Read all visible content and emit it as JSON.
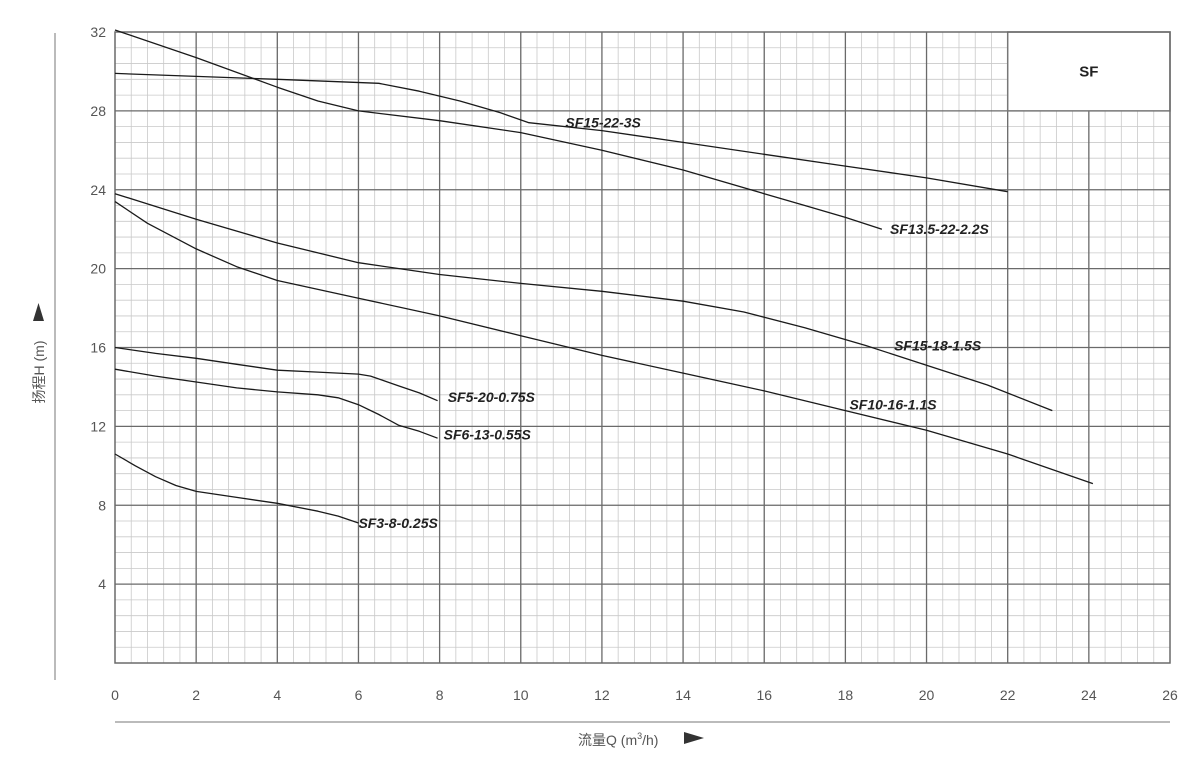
{
  "chart_data": {
    "type": "line",
    "box_label": "SF",
    "xlabel_prefix": "流量Q (m",
    "xlabel_sup": "3",
    "xlabel_suffix": "/h)",
    "ylabel": "扬程H (m)",
    "xlim": [
      0,
      26
    ],
    "ylim": [
      0,
      32
    ],
    "x_ticks": [
      0,
      2,
      4,
      6,
      8,
      10,
      12,
      14,
      16,
      18,
      20,
      22,
      24,
      26
    ],
    "y_ticks": [
      4,
      8,
      12,
      16,
      20,
      24,
      28,
      32
    ],
    "grid": true,
    "series": [
      {
        "name": "SF15-22-3S",
        "points": [
          [
            0,
            29.9
          ],
          [
            2,
            29.75
          ],
          [
            4,
            29.6
          ],
          [
            6.5,
            29.4
          ],
          [
            7.5,
            29.0
          ],
          [
            8.5,
            28.5
          ],
          [
            9.5,
            27.9
          ],
          [
            10.2,
            27.4
          ],
          [
            12,
            27.0
          ],
          [
            14,
            26.4
          ],
          [
            16,
            25.8
          ],
          [
            18,
            25.2
          ],
          [
            20,
            24.6
          ],
          [
            22,
            23.9
          ]
        ],
        "label_at": [
          11.1,
          27.4
        ]
      },
      {
        "name": "SF13.5-22-2.2S",
        "points": [
          [
            0,
            32.1
          ],
          [
            2,
            30.7
          ],
          [
            4,
            29.2
          ],
          [
            5,
            28.5
          ],
          [
            6,
            28.0
          ],
          [
            8,
            27.5
          ],
          [
            10,
            26.9
          ],
          [
            12,
            26.0
          ],
          [
            14,
            25.0
          ],
          [
            16,
            23.8
          ],
          [
            17,
            23.2
          ],
          [
            18,
            22.6
          ],
          [
            18.9,
            22.0
          ]
        ],
        "label_at": [
          19.1,
          22.0
        ]
      },
      {
        "name": "SF15-18-1.5S",
        "points": [
          [
            0,
            23.8
          ],
          [
            2,
            22.5
          ],
          [
            4,
            21.3
          ],
          [
            6,
            20.3
          ],
          [
            8,
            19.7
          ],
          [
            10,
            19.25
          ],
          [
            12,
            18.85
          ],
          [
            14,
            18.35
          ],
          [
            15.5,
            17.8
          ],
          [
            17,
            17.0
          ],
          [
            18.5,
            16.1
          ],
          [
            20,
            15.1
          ],
          [
            21.5,
            14.1
          ],
          [
            23.1,
            12.8
          ]
        ],
        "label_at": [
          19.2,
          16.1
        ]
      },
      {
        "name": "SF10-16-1.1S",
        "points": [
          [
            0,
            23.4
          ],
          [
            0.8,
            22.3
          ],
          [
            2,
            21.0
          ],
          [
            3,
            20.1
          ],
          [
            4,
            19.4
          ],
          [
            6,
            18.5
          ],
          [
            8,
            17.6
          ],
          [
            10,
            16.6
          ],
          [
            12,
            15.6
          ],
          [
            14,
            14.7
          ],
          [
            16,
            13.8
          ],
          [
            18,
            12.8
          ],
          [
            20,
            11.8
          ],
          [
            22,
            10.6
          ],
          [
            24.1,
            9.1
          ]
        ],
        "label_at": [
          18.1,
          13.1
        ]
      },
      {
        "name": "SF5-20-0.75S",
        "points": [
          [
            0,
            16.0
          ],
          [
            1,
            15.7
          ],
          [
            2,
            15.45
          ],
          [
            3,
            15.15
          ],
          [
            4,
            14.85
          ],
          [
            5,
            14.75
          ],
          [
            6,
            14.65
          ],
          [
            6.3,
            14.55
          ],
          [
            7,
            14.05
          ],
          [
            7.5,
            13.7
          ],
          [
            7.95,
            13.3
          ]
        ],
        "label_at": [
          8.2,
          13.5
        ]
      },
      {
        "name": "SF6-13-0.55S",
        "points": [
          [
            0,
            14.9
          ],
          [
            1,
            14.55
          ],
          [
            2,
            14.25
          ],
          [
            3,
            13.95
          ],
          [
            4,
            13.75
          ],
          [
            5,
            13.6
          ],
          [
            5.5,
            13.45
          ],
          [
            6,
            13.1
          ],
          [
            6.5,
            12.6
          ],
          [
            7,
            12.05
          ],
          [
            7.5,
            11.75
          ],
          [
            7.95,
            11.4
          ]
        ],
        "label_at": [
          8.1,
          11.6
        ]
      },
      {
        "name": "SF3-8-0.25S",
        "points": [
          [
            0,
            10.6
          ],
          [
            0.5,
            10.0
          ],
          [
            1,
            9.45
          ],
          [
            1.5,
            9.0
          ],
          [
            2,
            8.7
          ],
          [
            3,
            8.4
          ],
          [
            4,
            8.1
          ],
          [
            5,
            7.7
          ],
          [
            5.5,
            7.45
          ],
          [
            6,
            7.1
          ]
        ],
        "label_at": [
          6.0,
          7.1
        ]
      }
    ]
  }
}
